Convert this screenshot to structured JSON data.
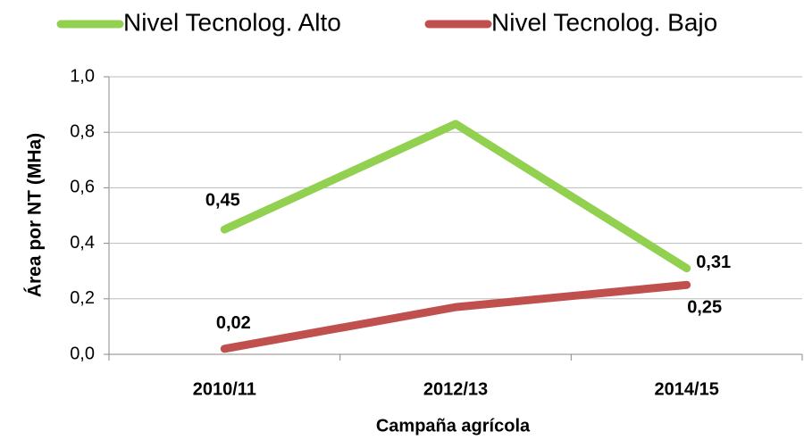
{
  "chart_data": {
    "type": "line",
    "categories": [
      "2010/11",
      "2012/13",
      "2014/15"
    ],
    "series": [
      {
        "name": "Nivel Tecnolog. Alto",
        "color": "#92d050",
        "values": [
          0.45,
          0.83,
          0.31
        ],
        "value_labels": [
          "0,45",
          null,
          "0,31"
        ]
      },
      {
        "name": "Nivel Tecnolog. Bajo",
        "color": "#c0504d",
        "values": [
          0.02,
          0.17,
          0.25
        ],
        "value_labels": [
          "0,02",
          null,
          "0,25"
        ]
      }
    ],
    "y_label": "Área por NT (MHa)",
    "x_label": "Campaña agrícola",
    "ylim": [
      0,
      1
    ],
    "yticks": [
      {
        "value": 0,
        "label": "0,0"
      },
      {
        "value": 0.2,
        "label": "0,2"
      },
      {
        "value": 0.4,
        "label": "0,4"
      },
      {
        "value": 0.6,
        "label": "0,6"
      },
      {
        "value": 0.8,
        "label": "0,8"
      },
      {
        "value": 1,
        "label": "1,0"
      }
    ],
    "grid": true,
    "legend": "top"
  }
}
